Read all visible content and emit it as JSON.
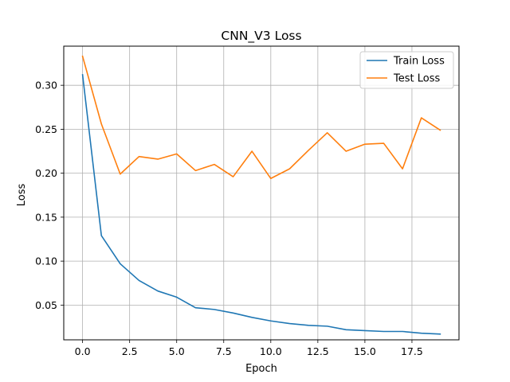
{
  "chart_data": {
    "type": "line",
    "title": "CNN_V3 Loss",
    "xlabel": "Epoch",
    "ylabel": "Loss",
    "xlim": [
      -1,
      20
    ],
    "ylim": [
      0.0105,
      0.3445
    ],
    "x_ticks": [
      0.0,
      2.5,
      5.0,
      7.5,
      10.0,
      12.5,
      15.0,
      17.5
    ],
    "x_tick_labels": [
      "0.0",
      "2.5",
      "5.0",
      "7.5",
      "10.0",
      "12.5",
      "15.0",
      "17.5"
    ],
    "y_ticks": [
      0.05,
      0.1,
      0.15,
      0.2,
      0.25,
      0.3
    ],
    "y_tick_labels": [
      "0.05",
      "0.10",
      "0.15",
      "0.20",
      "0.25",
      "0.30"
    ],
    "grid": true,
    "legend": "top-right",
    "x": [
      0,
      1,
      2,
      3,
      4,
      5,
      6,
      7,
      8,
      9,
      10,
      11,
      12,
      13,
      14,
      15,
      16,
      17,
      18,
      19
    ],
    "series": [
      {
        "name": "Train Loss",
        "color": "#1f77b4",
        "values": [
          0.312,
          0.129,
          0.097,
          0.078,
          0.066,
          0.059,
          0.047,
          0.045,
          0.041,
          0.036,
          0.032,
          0.029,
          0.027,
          0.026,
          0.022,
          0.021,
          0.02,
          0.02,
          0.018,
          0.017
        ]
      },
      {
        "name": "Test Loss",
        "color": "#ff7f0e",
        "values": [
          0.333,
          0.256,
          0.199,
          0.219,
          0.216,
          0.222,
          0.203,
          0.21,
          0.196,
          0.225,
          0.194,
          0.205,
          0.226,
          0.246,
          0.225,
          0.233,
          0.234,
          0.205,
          0.263,
          0.249
        ]
      }
    ]
  }
}
